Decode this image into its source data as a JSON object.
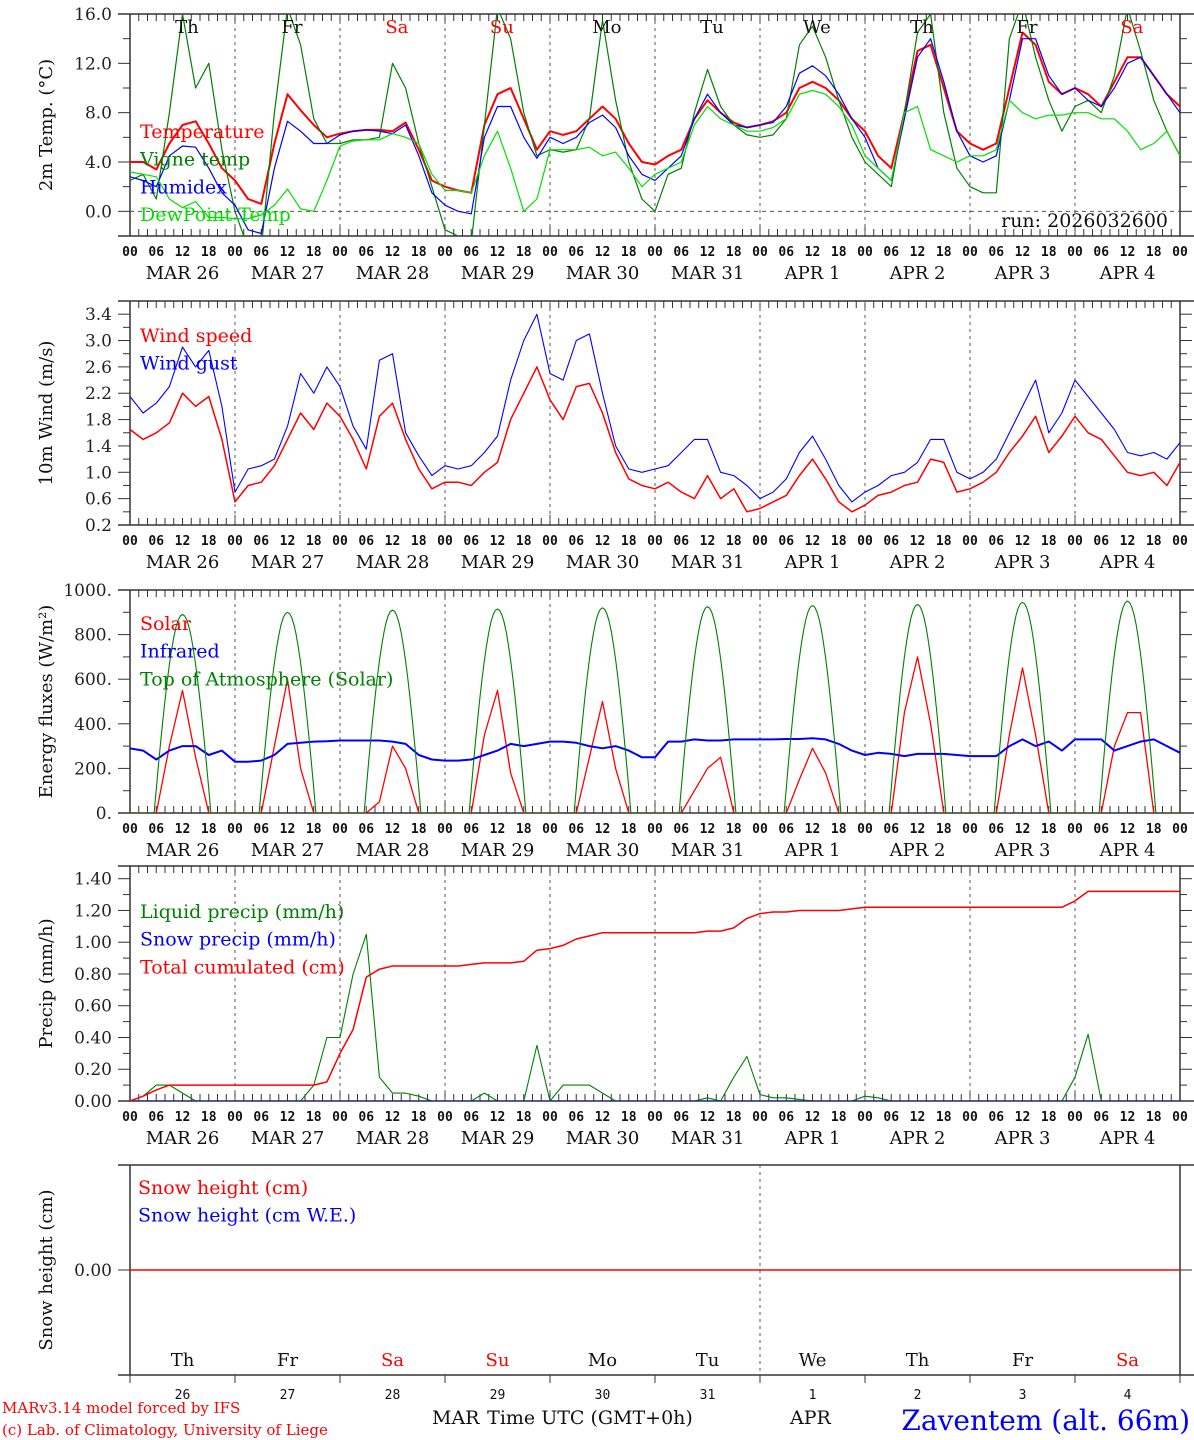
{
  "header": {
    "run": "run: 2026032600",
    "station": "Zaventem (alt. 66m)",
    "credit_line1": "MARv3.14 model forced by IFS",
    "credit_line2": "(c) Lab. of Climatology, University of Liege",
    "xlabel": "Time UTC (GMT+0h)",
    "month_mar": "MAR",
    "month_apr": "APR"
  },
  "colors": {
    "red": "#ff0000",
    "blue": "#0000ff",
    "darkgreen": "#008000",
    "lightgreen": "#00e000",
    "weekend": "#ff0000",
    "weekday": "#111111"
  },
  "time_axis": {
    "start": "2026-03-26 00 UTC",
    "step_hours": 3,
    "days": 10,
    "hour_labels": [
      "00",
      "06",
      "12",
      "18"
    ],
    "date_labels": [
      "MAR 26",
      "MAR 27",
      "MAR 28",
      "MAR 29",
      "MAR 30",
      "MAR 31",
      "APR  1",
      "APR  2",
      "APR  3",
      "APR  4"
    ],
    "day_names": [
      "Th",
      "Fr",
      "Sa",
      "Su",
      "Mo",
      "Tu",
      "We",
      "Th",
      "Fr",
      "Sa"
    ],
    "weekend": [
      false,
      false,
      true,
      true,
      false,
      false,
      false,
      false,
      false,
      true
    ],
    "day_numbers": [
      "26",
      "27",
      "28",
      "29",
      "30",
      "31",
      "1",
      "2",
      "3",
      "4"
    ]
  },
  "chart_data": [
    {
      "type": "line",
      "ylabel": "2m Temp. (°C)",
      "ylim": [
        -2,
        16
      ],
      "ytick_values": [
        0,
        4,
        8,
        12,
        16
      ],
      "ytick_labels": [
        "0.0",
        "4.0",
        "8.0",
        "12.0",
        "16.0"
      ],
      "zero_line": true,
      "series": [
        {
          "name": "Temperature",
          "color": "#ff0000",
          "width": 2,
          "values": [
            4.0,
            4.0,
            3.4,
            5.5,
            7.0,
            7.3,
            5.5,
            3.5,
            2.5,
            1.0,
            0.6,
            5.5,
            9.5,
            8.2,
            7.0,
            6.0,
            6.3,
            6.5,
            6.6,
            6.6,
            6.5,
            7.2,
            5.0,
            2.5,
            2.0,
            1.7,
            1.5,
            7.0,
            9.5,
            10.0,
            7.5,
            5.0,
            6.5,
            6.2,
            6.5,
            7.5,
            8.5,
            7.5,
            5.5,
            4.0,
            3.8,
            4.5,
            5.0,
            7.5,
            9.0,
            8.0,
            7.2,
            6.8,
            7.0,
            7.3,
            8.0,
            10.0,
            10.5,
            10.0,
            9.0,
            7.5,
            6.5,
            4.5,
            3.5,
            8.0,
            13.0,
            13.5,
            10.0,
            6.5,
            5.5,
            5.0,
            5.5,
            10.0,
            14.5,
            13.5,
            10.5,
            9.5,
            10.0,
            9.5,
            8.5,
            10.5,
            12.5,
            12.5,
            11.0,
            9.5,
            8.5
          ]
        },
        {
          "name": "Vigne temp",
          "color": "#008000",
          "width": 1.2,
          "values": [
            2.5,
            3.0,
            1.0,
            8.0,
            16.0,
            10.0,
            12.0,
            5.0,
            0.0,
            -3.0,
            -3.0,
            8.0,
            16.5,
            13.5,
            7.5,
            5.5,
            5.5,
            5.8,
            5.8,
            6.0,
            12.0,
            10.0,
            5.5,
            2.0,
            -1.5,
            -2.0,
            -2.5,
            7.0,
            16.5,
            14.0,
            8.0,
            4.5,
            5.0,
            4.8,
            5.0,
            7.5,
            15.5,
            9.0,
            4.0,
            1.0,
            0.0,
            3.0,
            3.5,
            8.0,
            11.5,
            8.5,
            7.0,
            6.2,
            6.0,
            6.2,
            7.5,
            13.5,
            15.0,
            12.5,
            9.0,
            6.0,
            4.0,
            3.0,
            2.0,
            8.0,
            14.5,
            16.0,
            8.0,
            3.5,
            2.0,
            1.5,
            1.5,
            14.0,
            17.0,
            12.5,
            9.0,
            6.5,
            8.5,
            9.0,
            8.0,
            11.0,
            16.5,
            13.0,
            9.0,
            6.5,
            4.5
          ]
        },
        {
          "name": "Humidex",
          "color": "#0000ff",
          "width": 1.2,
          "values": [
            2.8,
            2.5,
            2.0,
            4.5,
            5.3,
            5.2,
            3.5,
            1.5,
            0.5,
            -1.5,
            -1.8,
            3.5,
            7.3,
            6.5,
            5.5,
            5.5,
            6.2,
            6.5,
            6.6,
            6.5,
            6.3,
            7.0,
            4.5,
            1.5,
            0.5,
            0.0,
            -0.2,
            6.0,
            8.5,
            8.5,
            6.0,
            4.3,
            6.0,
            5.5,
            6.0,
            7.2,
            7.8,
            6.8,
            4.5,
            3.0,
            2.5,
            3.5,
            4.5,
            7.5,
            9.5,
            8.0,
            7.0,
            6.8,
            7.0,
            7.2,
            8.5,
            11.2,
            11.8,
            11.0,
            9.5,
            7.5,
            6.0,
            3.5,
            2.5,
            7.5,
            12.5,
            14.0,
            10.5,
            6.5,
            4.5,
            4.0,
            4.5,
            9.0,
            14.0,
            14.0,
            11.0,
            9.5,
            10.0,
            9.0,
            8.5,
            10.0,
            12.0,
            12.5,
            11.0,
            9.5,
            8.0
          ]
        },
        {
          "name": "DewPoint Temp",
          "color": "#00e000",
          "width": 1.2,
          "values": [
            3.2,
            3.0,
            2.8,
            1.0,
            0.3,
            0.8,
            -0.5,
            -0.5,
            -0.6,
            -0.6,
            -0.3,
            0.5,
            1.8,
            0.2,
            0.0,
            2.5,
            5.3,
            5.7,
            5.8,
            5.8,
            6.3,
            6.0,
            5.5,
            3.0,
            1.7,
            1.7,
            1.5,
            4.5,
            6.5,
            3.5,
            0.0,
            1.0,
            5.0,
            5.0,
            5.0,
            5.2,
            4.5,
            4.8,
            3.5,
            2.0,
            3.0,
            3.5,
            4.0,
            7.0,
            8.5,
            7.5,
            7.0,
            6.5,
            6.5,
            6.8,
            7.5,
            9.5,
            9.8,
            9.5,
            8.5,
            7.0,
            4.5,
            3.5,
            2.5,
            8.0,
            8.5,
            5.0,
            4.5,
            4.0,
            4.5,
            4.5,
            5.0,
            9.0,
            8.0,
            7.5,
            7.8,
            7.8,
            8.0,
            8.0,
            7.5,
            7.5,
            6.5,
            5.0,
            5.5,
            6.5,
            4.5
          ]
        }
      ]
    },
    {
      "type": "line",
      "ylabel": "10m Wind (m/s)",
      "ylim": [
        0.2,
        3.6
      ],
      "ytick_values": [
        0.2,
        0.6,
        1.0,
        1.4,
        1.8,
        2.2,
        2.6,
        3.0,
        3.4
      ],
      "ytick_labels": [
        "0.2",
        "0.6",
        "1.0",
        "1.4",
        "1.8",
        "2.2",
        "2.6",
        "3.0",
        "3.4"
      ],
      "series": [
        {
          "name": "Wind speed",
          "color": "#ff0000",
          "width": 1.5,
          "values": [
            1.65,
            1.5,
            1.6,
            1.75,
            2.2,
            2.0,
            2.15,
            1.5,
            0.55,
            0.8,
            0.85,
            1.1,
            1.5,
            1.9,
            1.65,
            2.05,
            1.85,
            1.5,
            1.05,
            1.85,
            2.05,
            1.5,
            1.05,
            0.75,
            0.85,
            0.85,
            0.8,
            1.0,
            1.15,
            1.8,
            2.2,
            2.6,
            2.1,
            1.8,
            2.3,
            2.35,
            1.9,
            1.3,
            0.9,
            0.8,
            0.75,
            0.85,
            0.7,
            0.6,
            0.95,
            0.6,
            0.75,
            0.4,
            0.45,
            0.55,
            0.65,
            0.95,
            1.2,
            0.9,
            0.55,
            0.4,
            0.5,
            0.65,
            0.7,
            0.8,
            0.85,
            1.2,
            1.15,
            0.7,
            0.75,
            0.85,
            1.0,
            1.3,
            1.55,
            1.85,
            1.3,
            1.55,
            1.85,
            1.6,
            1.5,
            1.25,
            1.0,
            0.95,
            1.0,
            0.8,
            1.15
          ]
        },
        {
          "name": "Wind gust",
          "color": "#0000ff",
          "width": 1.1,
          "values": [
            2.15,
            1.9,
            2.05,
            2.3,
            2.9,
            2.6,
            2.85,
            2.0,
            0.7,
            1.05,
            1.1,
            1.2,
            1.7,
            2.5,
            2.2,
            2.6,
            2.3,
            1.7,
            1.35,
            2.7,
            2.8,
            1.6,
            1.25,
            0.95,
            1.1,
            1.05,
            1.1,
            1.3,
            1.55,
            2.4,
            3.0,
            3.4,
            2.5,
            2.4,
            3.0,
            3.1,
            2.2,
            1.4,
            1.05,
            1.0,
            1.05,
            1.1,
            1.3,
            1.5,
            1.5,
            1.0,
            0.95,
            0.8,
            0.6,
            0.7,
            0.9,
            1.3,
            1.55,
            1.2,
            0.8,
            0.55,
            0.7,
            0.8,
            0.95,
            1.0,
            1.15,
            1.5,
            1.5,
            1.0,
            0.9,
            1.0,
            1.2,
            1.6,
            2.0,
            2.4,
            1.6,
            1.9,
            2.4,
            2.15,
            1.9,
            1.65,
            1.3,
            1.25,
            1.3,
            1.2,
            1.45
          ]
        }
      ]
    },
    {
      "type": "line",
      "ylabel": "Energy fluxes (W/m²)",
      "ylim": [
        0,
        1000
      ],
      "ytick_values": [
        0,
        200,
        400,
        600,
        800,
        1000
      ],
      "ytick_labels": [
        "0.",
        "200.",
        "400.",
        "600.",
        "800.",
        "1000."
      ],
      "series": [
        {
          "name": "Solar",
          "color": "#ff0000",
          "width": 1.3,
          "values": [
            0,
            0,
            0,
            300,
            550,
            250,
            0,
            0,
            0,
            0,
            0,
            300,
            600,
            200,
            0,
            0,
            0,
            0,
            0,
            50,
            300,
            200,
            0,
            0,
            0,
            0,
            0,
            350,
            550,
            180,
            0,
            0,
            0,
            0,
            0,
            250,
            500,
            200,
            0,
            0,
            0,
            0,
            0,
            100,
            200,
            250,
            0,
            0,
            0,
            0,
            0,
            150,
            290,
            180,
            0,
            0,
            0,
            0,
            0,
            450,
            700,
            400,
            0,
            0,
            0,
            0,
            0,
            350,
            650,
            350,
            0,
            0,
            0,
            0,
            0,
            300,
            450,
            450,
            0,
            0,
            0
          ]
        },
        {
          "name": "Infrared",
          "color": "#0000ff",
          "width": 2,
          "values": [
            290,
            280,
            240,
            280,
            300,
            300,
            260,
            280,
            230,
            230,
            235,
            260,
            310,
            315,
            320,
            322,
            325,
            325,
            325,
            325,
            320,
            310,
            260,
            240,
            235,
            235,
            240,
            260,
            280,
            310,
            300,
            310,
            320,
            320,
            315,
            300,
            290,
            300,
            280,
            250,
            250,
            320,
            320,
            330,
            325,
            325,
            330,
            330,
            330,
            330,
            332,
            332,
            335,
            330,
            310,
            280,
            260,
            270,
            265,
            255,
            265,
            265,
            265,
            260,
            255,
            255,
            255,
            300,
            330,
            300,
            320,
            280,
            330,
            330,
            330,
            280,
            300,
            320,
            330,
            300,
            270
          ]
        },
        {
          "name": "Top of Atmosphere (Solar)",
          "color": "#008000",
          "width": 1.1,
          "daily_peak": [
            890,
            900,
            910,
            915,
            920,
            925,
            930,
            935,
            945,
            950
          ],
          "daylight_utc_hours": [
            5.5,
            18.5
          ]
        }
      ]
    },
    {
      "type": "line",
      "ylabel": "Precip (mm/h)",
      "ylim": [
        0,
        1.48
      ],
      "ytick_values": [
        0,
        0.2,
        0.4,
        0.6,
        0.8,
        1.0,
        1.2,
        1.4
      ],
      "ytick_labels": [
        "0.00",
        "0.20",
        "0.40",
        "0.60",
        "0.80",
        "1.00",
        "1.20",
        "1.40"
      ],
      "series": [
        {
          "name": "Liquid precip (mm/h)",
          "color": "#008000",
          "width": 1.1,
          "values": [
            0,
            0.03,
            0.1,
            0.1,
            0.05,
            0,
            0,
            0,
            0,
            0,
            0,
            0,
            0,
            0,
            0.1,
            0.4,
            0.4,
            0.8,
            1.05,
            0.15,
            0.05,
            0.05,
            0.03,
            0,
            0,
            0,
            0,
            0.05,
            0,
            0,
            0,
            0.35,
            0,
            0.1,
            0.1,
            0.1,
            0.05,
            0,
            0,
            0,
            0,
            0,
            0,
            0,
            0.02,
            0,
            0.15,
            0.28,
            0.04,
            0.02,
            0.02,
            0.01,
            0,
            0,
            0,
            0,
            0.03,
            0.02,
            0,
            0,
            0,
            0,
            0,
            0,
            0,
            0,
            0,
            0,
            0,
            0,
            0,
            0,
            0.15,
            0.42,
            0,
            0,
            0,
            0,
            0,
            0,
            0
          ]
        },
        {
          "name": "Snow precip (mm/h)",
          "color": "#0000ff",
          "width": 1.1,
          "constant": 0
        },
        {
          "name": "Total cumulated (cm)",
          "color": "#ff0000",
          "width": 1.5,
          "values": [
            0,
            0.03,
            0.07,
            0.1,
            0.1,
            0.1,
            0.1,
            0.1,
            0.1,
            0.1,
            0.1,
            0.1,
            0.1,
            0.1,
            0.1,
            0.12,
            0.3,
            0.45,
            0.78,
            0.83,
            0.85,
            0.85,
            0.85,
            0.85,
            0.85,
            0.85,
            0.86,
            0.87,
            0.87,
            0.87,
            0.88,
            0.95,
            0.96,
            0.98,
            1.02,
            1.04,
            1.06,
            1.06,
            1.06,
            1.06,
            1.06,
            1.06,
            1.06,
            1.06,
            1.07,
            1.07,
            1.09,
            1.15,
            1.18,
            1.19,
            1.19,
            1.2,
            1.2,
            1.2,
            1.2,
            1.21,
            1.22,
            1.22,
            1.22,
            1.22,
            1.22,
            1.22,
            1.22,
            1.22,
            1.22,
            1.22,
            1.22,
            1.22,
            1.22,
            1.22,
            1.22,
            1.22,
            1.26,
            1.32,
            1.32,
            1.32,
            1.32,
            1.32,
            1.32,
            1.32,
            1.32
          ]
        }
      ]
    },
    {
      "type": "line",
      "ylabel": "Snow height (cm)",
      "ylim": [
        -1,
        1
      ],
      "ytick_values": [
        0
      ],
      "ytick_labels": [
        "0.00"
      ],
      "series": [
        {
          "name": "Snow height (cm)",
          "color": "#ff0000",
          "width": 1.5,
          "constant": 0
        },
        {
          "name": "Snow height (cm W.E.)",
          "color": "#0000ff",
          "width": 1.1,
          "constant": 0,
          "hidden_under_red": true
        }
      ]
    }
  ]
}
